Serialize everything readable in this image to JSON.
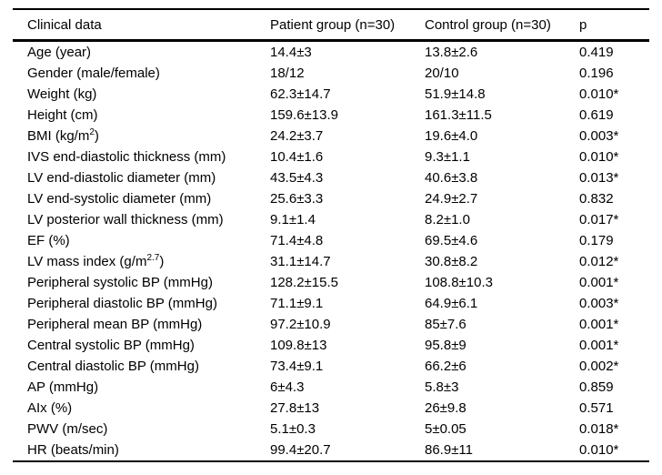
{
  "table": {
    "columns": [
      "Clinical data",
      "Patient group (n=30)",
      "Control group (n=30)",
      "p"
    ],
    "rows": [
      {
        "label": "Age (year)",
        "patient": "14.4±3",
        "control": "13.8±2.6",
        "p": "0.419"
      },
      {
        "label": "Gender (male/female)",
        "patient": "18/12",
        "control": "20/10",
        "p": "0.196"
      },
      {
        "label": "Weight (kg)",
        "patient": "62.3±14.7",
        "control": "51.9±14.8",
        "p": "0.010*"
      },
      {
        "label": "Height (cm)",
        "patient": "159.6±13.9",
        "control": "161.3±11.5",
        "p": "0.619"
      },
      {
        "label": "BMI (kg/m",
        "label_sup": "2",
        "label_after": ")",
        "patient": "24.2±3.7",
        "control": "19.6±4.0",
        "p": "0.003*"
      },
      {
        "label": "IVS end-diastolic thickness (mm)",
        "patient": "10.4±1.6",
        "control": "9.3±1.1",
        "p": "0.010*"
      },
      {
        "label": "LV end-diastolic diameter (mm)",
        "patient": "43.5±4.3",
        "control": "40.6±3.8",
        "p": "0.013*"
      },
      {
        "label": "LV end-systolic diameter (mm)",
        "patient": "25.6±3.3",
        "control": "24.9±2.7",
        "p": "0.832"
      },
      {
        "label": "LV posterior wall thickness (mm)",
        "patient": "9.1±1.4",
        "control": "8.2±1.0",
        "p": "0.017*"
      },
      {
        "label": "EF (%)",
        "patient": "71.4±4.8",
        "control": "69.5±4.6",
        "p": "0.179"
      },
      {
        "label": "LV mass index (g/m",
        "label_sup": "2.7",
        "label_after": ")",
        "patient": "31.1±14.7",
        "control": "30.8±8.2",
        "p": "0.012*"
      },
      {
        "label": "Peripheral systolic BP (mmHg)",
        "patient": "128.2±15.5",
        "control": "108.8±10.3",
        "p": "0.001*"
      },
      {
        "label": "Peripheral diastolic BP (mmHg)",
        "patient": "71.1±9.1",
        "control": "64.9±6.1",
        "p": "0.003*"
      },
      {
        "label": "Peripheral mean BP (mmHg)",
        "patient": "97.2±10.9",
        "control": "85±7.6",
        "p": "0.001*"
      },
      {
        "label": "Central systolic BP (mmHg)",
        "patient": "109.8±13",
        "control": "95.8±9",
        "p": "0.001*"
      },
      {
        "label": "Central diastolic BP (mmHg)",
        "patient": "73.4±9.1",
        "control": "66.2±6",
        "p": "0.002*"
      },
      {
        "label": "AP (mmHg)",
        "patient": "6±4.3",
        "control": "5.8±3",
        "p": "0.859"
      },
      {
        "label": "AIx (%)",
        "patient": "27.8±13",
        "control": "26±9.8",
        "p": "0.571"
      },
      {
        "label": "PWV (m/sec)",
        "patient": "5.1±0.3",
        "control": "5±0.05",
        "p": "0.018*"
      },
      {
        "label": "HR (beats/min)",
        "patient": "99.4±20.7",
        "control": "86.9±11",
        "p": "0.010*"
      }
    ]
  }
}
